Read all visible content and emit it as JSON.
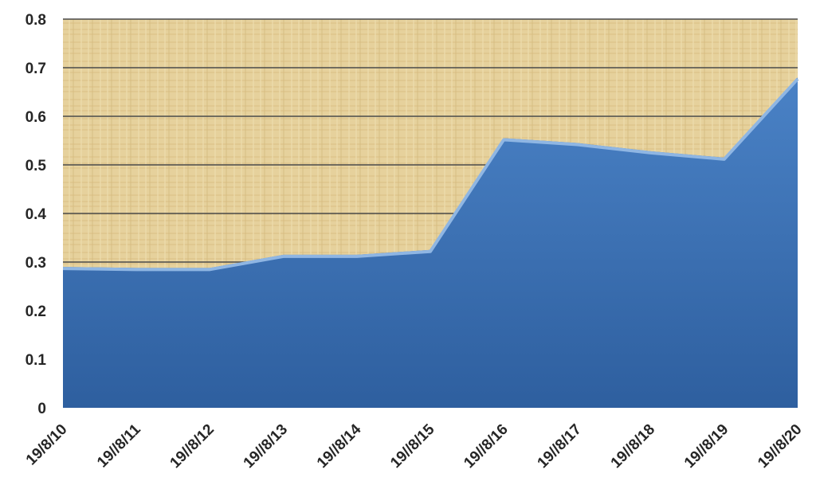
{
  "chart_data": {
    "type": "area",
    "x": [
      "19/8/10",
      "19//8/11",
      "19//8/12",
      "19//8/13",
      "19//8/14",
      "19//8/15",
      "19//8/16",
      "19//8/17",
      "19//8/18",
      "19//8/19",
      "19//8/20"
    ],
    "series": [
      {
        "values": [
          0.29,
          0.288,
          0.288,
          0.315,
          0.315,
          0.325,
          0.555,
          0.545,
          0.528,
          0.515,
          0.68
        ]
      }
    ],
    "ylim": [
      0,
      0.8
    ],
    "yticks": [
      "0",
      "0.1",
      "0.2",
      "0.3",
      "0.4",
      "0.5",
      "0.6",
      "0.7",
      "0.8"
    ],
    "grid": true,
    "colors": {
      "area": "#3a6fb3",
      "area_edge": "#8fb6e3",
      "plot_background": "#e8d4a0",
      "gridline": "#4a4a4a"
    }
  }
}
